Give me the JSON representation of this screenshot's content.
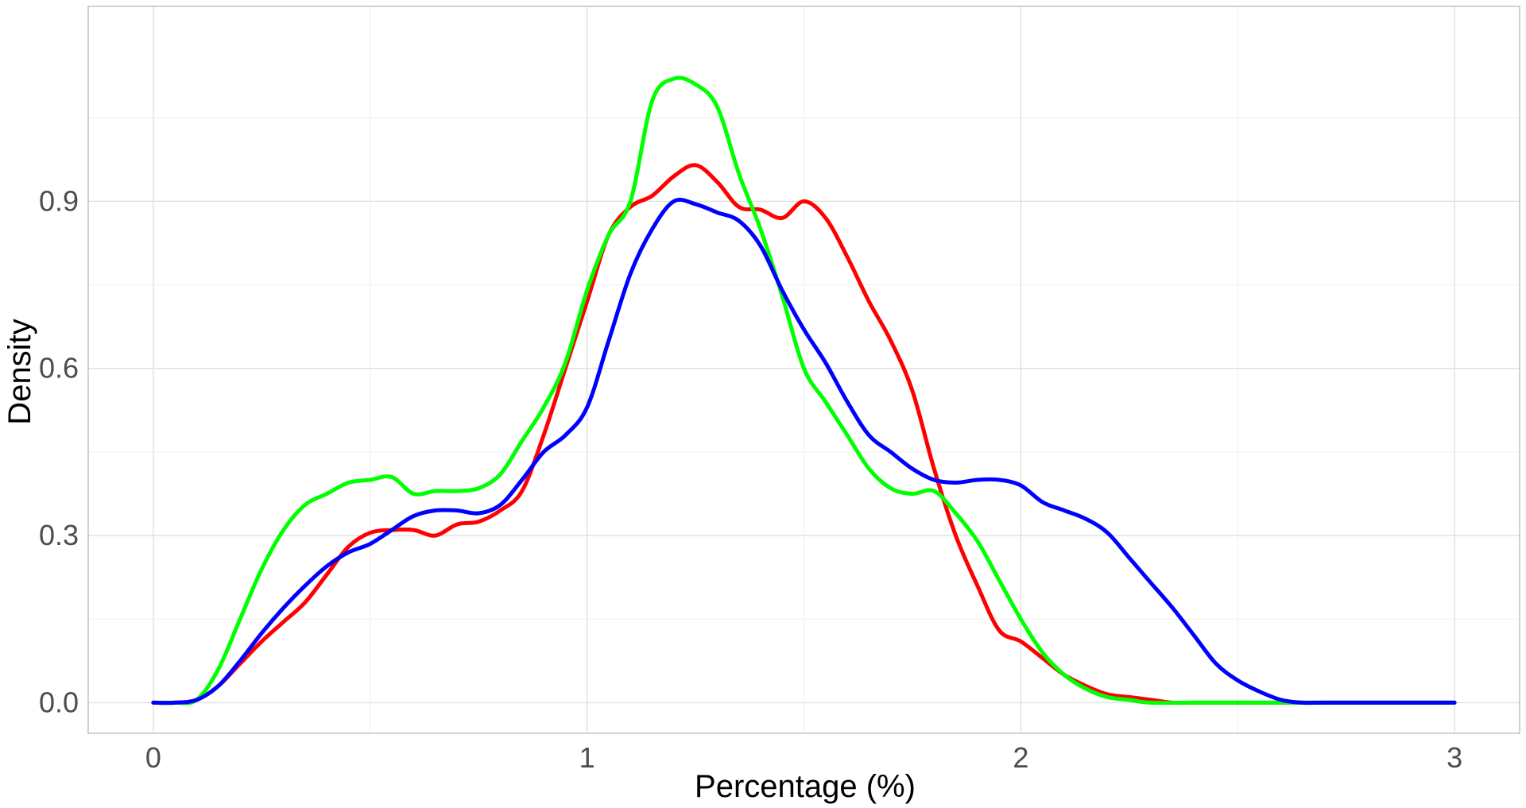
{
  "chart_data": {
    "type": "line",
    "title": "",
    "xlabel": "Percentage (%)",
    "ylabel": "Density",
    "xlim": [
      -0.15,
      3.15
    ],
    "ylim": [
      -0.055,
      1.25
    ],
    "x_ticks": [
      0,
      1,
      2,
      3
    ],
    "x_tick_labels": [
      "0",
      "1",
      "2",
      "3"
    ],
    "y_ticks": [
      0.0,
      0.3,
      0.6,
      0.9
    ],
    "y_tick_labels": [
      "0.0",
      "0.3",
      "0.6",
      "0.9"
    ],
    "x_minor_ticks": [
      0.5,
      1.5,
      2.5
    ],
    "y_minor_ticks": [
      0.15,
      0.45,
      0.75,
      1.05
    ],
    "grid": true,
    "legend": "none",
    "series": [
      {
        "color": "#ff0000",
        "x": [
          0,
          0.05,
          0.1,
          0.15,
          0.2,
          0.25,
          0.3,
          0.35,
          0.4,
          0.45,
          0.5,
          0.55,
          0.6,
          0.65,
          0.7,
          0.75,
          0.8,
          0.85,
          0.9,
          0.95,
          1.0,
          1.05,
          1.1,
          1.15,
          1.2,
          1.25,
          1.3,
          1.35,
          1.4,
          1.45,
          1.5,
          1.55,
          1.6,
          1.65,
          1.7,
          1.75,
          1.8,
          1.85,
          1.9,
          1.95,
          2.0,
          2.05,
          2.1,
          2.15,
          2.2,
          2.25,
          2.3,
          2.35,
          2.4,
          2.5,
          2.7,
          3.0
        ],
        "y": [
          0.0,
          0.0,
          0.005,
          0.03,
          0.07,
          0.11,
          0.145,
          0.18,
          0.23,
          0.28,
          0.305,
          0.31,
          0.31,
          0.3,
          0.32,
          0.325,
          0.345,
          0.38,
          0.48,
          0.6,
          0.72,
          0.84,
          0.89,
          0.91,
          0.945,
          0.965,
          0.935,
          0.89,
          0.885,
          0.87,
          0.9,
          0.87,
          0.8,
          0.72,
          0.65,
          0.56,
          0.42,
          0.3,
          0.21,
          0.13,
          0.11,
          0.08,
          0.05,
          0.03,
          0.015,
          0.01,
          0.005,
          0.0,
          0.0,
          0.0,
          0.0,
          0.0
        ]
      },
      {
        "color": "#00ff00",
        "x": [
          0,
          0.05,
          0.1,
          0.15,
          0.2,
          0.25,
          0.3,
          0.35,
          0.4,
          0.45,
          0.5,
          0.55,
          0.6,
          0.65,
          0.7,
          0.75,
          0.8,
          0.85,
          0.9,
          0.95,
          1.0,
          1.05,
          1.1,
          1.15,
          1.2,
          1.25,
          1.3,
          1.35,
          1.4,
          1.45,
          1.5,
          1.55,
          1.6,
          1.65,
          1.7,
          1.75,
          1.8,
          1.85,
          1.9,
          1.95,
          2.0,
          2.05,
          2.1,
          2.15,
          2.2,
          2.25,
          2.3,
          2.4,
          2.7,
          3.0
        ],
        "y": [
          0.0,
          0.0,
          0.005,
          0.06,
          0.15,
          0.24,
          0.31,
          0.355,
          0.375,
          0.395,
          0.4,
          0.405,
          0.375,
          0.38,
          0.38,
          0.385,
          0.41,
          0.47,
          0.53,
          0.61,
          0.74,
          0.84,
          0.9,
          1.08,
          1.12,
          1.11,
          1.07,
          0.95,
          0.85,
          0.73,
          0.6,
          0.54,
          0.48,
          0.42,
          0.385,
          0.375,
          0.38,
          0.34,
          0.29,
          0.22,
          0.15,
          0.09,
          0.05,
          0.025,
          0.01,
          0.005,
          0.0,
          0.0,
          0.0,
          0.0
        ]
      },
      {
        "color": "#0000ff",
        "x": [
          0,
          0.05,
          0.1,
          0.15,
          0.2,
          0.25,
          0.3,
          0.35,
          0.4,
          0.45,
          0.5,
          0.55,
          0.6,
          0.65,
          0.7,
          0.75,
          0.8,
          0.85,
          0.9,
          0.95,
          1.0,
          1.05,
          1.1,
          1.15,
          1.2,
          1.25,
          1.3,
          1.35,
          1.4,
          1.45,
          1.5,
          1.55,
          1.6,
          1.65,
          1.7,
          1.75,
          1.8,
          1.85,
          1.9,
          1.95,
          2.0,
          2.05,
          2.1,
          2.15,
          2.2,
          2.25,
          2.3,
          2.35,
          2.4,
          2.45,
          2.5,
          2.55,
          2.6,
          2.65,
          2.7,
          3.0
        ],
        "y": [
          0.0,
          0.0,
          0.005,
          0.03,
          0.075,
          0.125,
          0.17,
          0.21,
          0.245,
          0.27,
          0.285,
          0.31,
          0.335,
          0.345,
          0.345,
          0.34,
          0.355,
          0.4,
          0.45,
          0.48,
          0.53,
          0.65,
          0.77,
          0.85,
          0.9,
          0.895,
          0.88,
          0.865,
          0.82,
          0.74,
          0.67,
          0.61,
          0.54,
          0.48,
          0.45,
          0.42,
          0.4,
          0.395,
          0.4,
          0.4,
          0.39,
          0.36,
          0.345,
          0.33,
          0.305,
          0.26,
          0.215,
          0.17,
          0.12,
          0.07,
          0.04,
          0.02,
          0.005,
          0.0,
          0.0,
          0.0
        ]
      }
    ]
  }
}
